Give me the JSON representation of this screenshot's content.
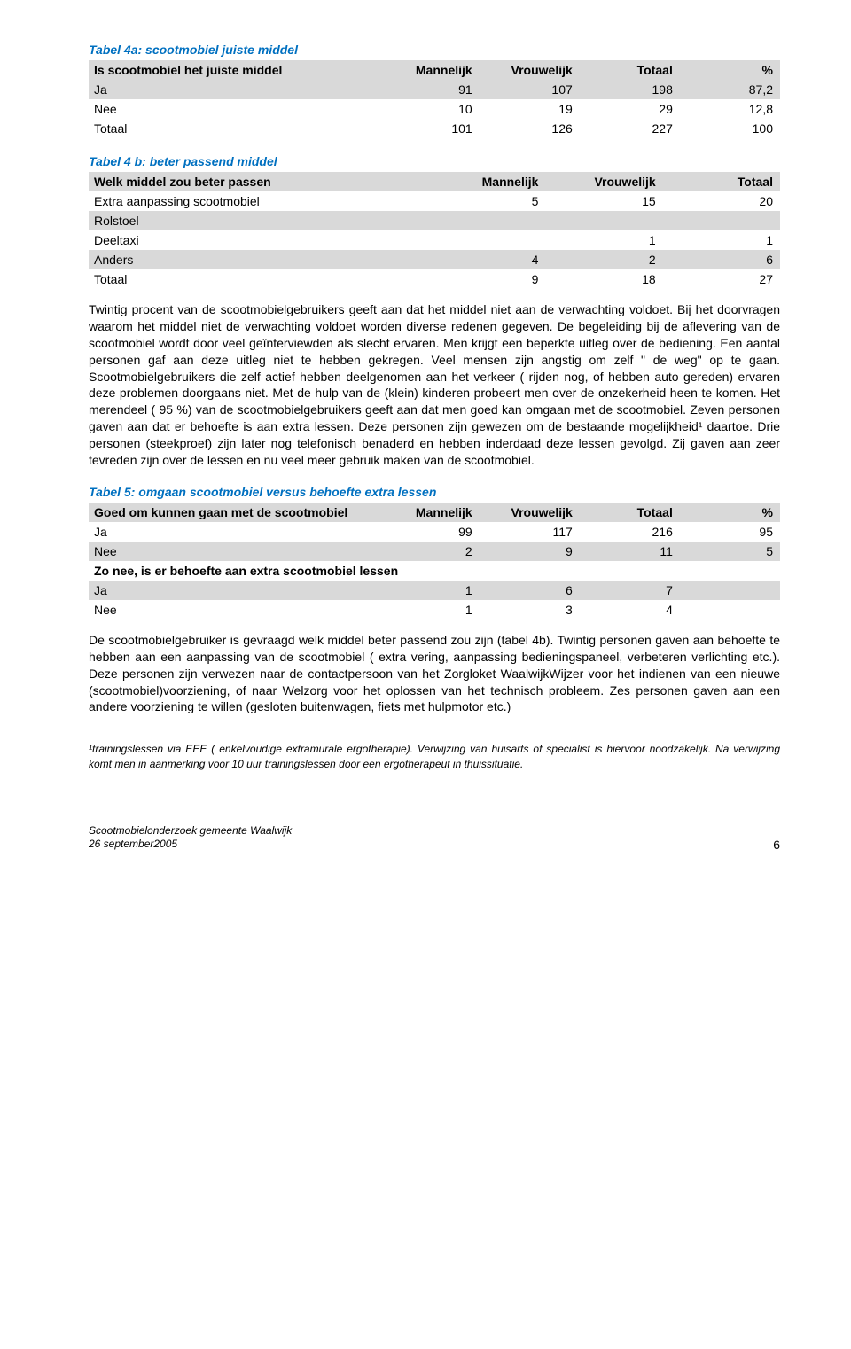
{
  "table4a": {
    "title": "Tabel 4a: scootmobiel juiste middel",
    "header": [
      "Is scootmobiel het juiste middel",
      "Mannelijk",
      "Vrouwelijk",
      "Totaal",
      "%"
    ],
    "rows": [
      {
        "label": "Ja",
        "v": [
          "91",
          "107",
          "198",
          "87,2"
        ],
        "cls": "row-grey"
      },
      {
        "label": "Nee",
        "v": [
          "10",
          "19",
          "29",
          "12,8"
        ],
        "cls": "row-white"
      },
      {
        "label": "Totaal",
        "v": [
          "101",
          "126",
          "227",
          "100"
        ],
        "cls": "row-white bold"
      }
    ]
  },
  "table4b": {
    "title": "Tabel 4 b:  beter passend middel",
    "header": [
      "Welk middel zou beter passen",
      "Mannelijk",
      "Vrouwelijk",
      "Totaal"
    ],
    "rows": [
      {
        "label": "Extra aanpassing scootmobiel",
        "v": [
          "5",
          "15",
          "20"
        ],
        "cls": "row-white"
      },
      {
        "label": "Rolstoel",
        "v": [
          "",
          "",
          ""
        ],
        "cls": "row-grey"
      },
      {
        "label": "Deeltaxi",
        "v": [
          "",
          "1",
          "1"
        ],
        "cls": "row-white"
      },
      {
        "label": "Anders",
        "v": [
          "4",
          "2",
          "6"
        ],
        "cls": "row-grey"
      },
      {
        "label": "Totaal",
        "v": [
          "9",
          "18",
          "27"
        ],
        "cls": "row-white"
      }
    ]
  },
  "paragraph1": "Twintig procent van de scootmobielgebruikers geeft aan dat het middel niet aan de verwachting voldoet. Bij het doorvragen waarom het middel  niet de verwachting voldoet worden diverse redenen gegeven.  De begeleiding bij de aflevering van de scootmobiel wordt door veel geïnterviewden als slecht ervaren.  Men krijgt een beperkte uitleg over de bediening. Een aantal personen gaf aan deze uitleg niet te hebben gekregen.  Veel mensen zijn angstig om zelf \" de weg\" op te gaan.  Scootmobielgebruikers die zelf actief hebben deelgenomen aan het verkeer ( rijden nog, of hebben auto gereden) ervaren deze problemen doorgaans niet.   Met de hulp van de (klein) kinderen probeert men over de onzekerheid heen te komen. Het merendeel ( 95 %) van de scootmobielgebruikers geeft aan dat  men goed kan omgaan met de scootmobiel. Zeven personen gaven aan dat er behoefte is aan extra lessen. Deze personen zijn gewezen om de bestaande mogelijkheid¹ daartoe. Drie personen  (steekproef)  zijn later nog telefonisch benaderd en hebben inderdaad deze lessen gevolgd. Zij gaven aan zeer tevreden zijn over de lessen en nu veel meer gebruik maken van de scootmobiel.",
  "table5": {
    "title": "Tabel 5: omgaan scootmobiel versus behoefte extra lessen",
    "header1": [
      "Goed om kunnen gaan met de scootmobiel",
      "Mannelijk",
      "Vrouwelijk",
      "Totaal",
      "%"
    ],
    "rows1": [
      {
        "label": "Ja",
        "v": [
          "99",
          "117",
          "216",
          "95"
        ],
        "cls": "row-white"
      },
      {
        "label": "Nee",
        "v": [
          "2",
          "9",
          "11",
          "5"
        ],
        "cls": "row-grey"
      }
    ],
    "header2": "Zo nee, is er behoefte aan  extra scootmobiel lessen",
    "rows2": [
      {
        "label": "Ja",
        "v": [
          "1",
          "6",
          "7",
          ""
        ],
        "cls": "row-grey"
      },
      {
        "label": "Nee",
        "v": [
          "1",
          "3",
          "4",
          ""
        ],
        "cls": "row-white"
      }
    ]
  },
  "paragraph2": "De scootmobielgebruiker is gevraagd welk middel beter passend zou zijn (tabel 4b). Twintig personen gaven aan behoefte te hebben aan een aanpassing van de scootmobiel ( extra vering, aanpassing bedieningspaneel, verbeteren verlichting etc.). Deze personen zijn verwezen naar de contactpersoon van het Zorgloket WaalwijkWijzer voor het indienen van een nieuwe (scootmobiel)voorziening, of naar Welzorg voor het oplossen van het technisch probleem.  Zes personen gaven aan een andere voorziening te willen (gesloten buitenwagen, fiets met hulpmotor etc.)",
  "footnote": "¹trainingslessen via EEE ( enkelvoudige extramurale ergotherapie). Verwijzing van huisarts of specialist is hiervoor noodzakelijk. Na verwijzing komt men in aanmerking voor 10 uur trainingslessen door een ergotherapeut in thuissituatie.",
  "footer": {
    "line1": "Scootmobielonderzoek gemeente Waalwijk",
    "line2": "26 september2005",
    "page": "6"
  }
}
